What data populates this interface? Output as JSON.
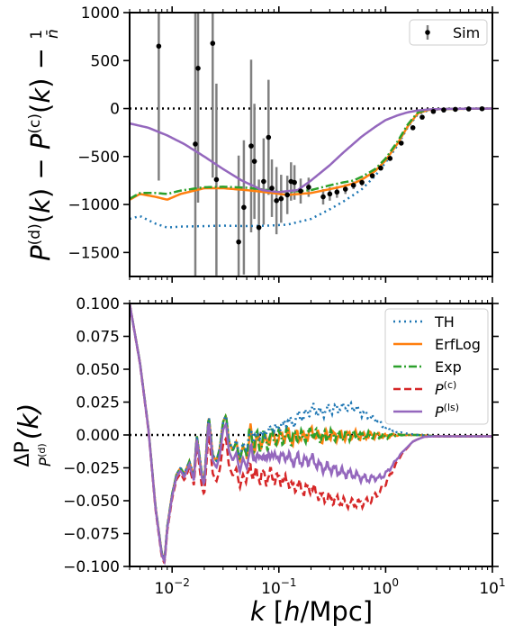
{
  "chart_data": [
    {
      "type": "line",
      "panel": "top",
      "ylabel": "P^(d)(k) − P^(c)(k) − 1/n̄",
      "ylim": [
        -1750,
        1000
      ],
      "xlim": [
        0.004,
        10
      ],
      "xscale": "log",
      "yticks": [
        1000,
        500,
        0,
        -500,
        -1000,
        -1500
      ],
      "ytick_labels": [
        "1000",
        "500",
        "0",
        "−500",
        "−1000",
        "−1500"
      ],
      "reference_line": {
        "y": 0,
        "style": "dotted",
        "color": "#000000"
      },
      "legend": {
        "position": "top-right",
        "entries": [
          "Sim"
        ]
      },
      "series": [
        {
          "name": "TH",
          "color": "#1f77b4",
          "style": "dotted",
          "x": [
            0.004,
            0.005,
            0.007,
            0.009,
            0.012,
            0.02,
            0.03,
            0.05,
            0.08,
            0.12,
            0.2,
            0.3,
            0.4,
            0.5,
            0.6,
            0.8,
            1.0,
            1.3,
            1.6,
            2.0,
            2.5,
            3.0,
            4,
            6,
            10
          ],
          "y": [
            -1150,
            -1120,
            -1200,
            -1240,
            -1230,
            -1225,
            -1220,
            -1225,
            -1220,
            -1210,
            -1150,
            -1050,
            -970,
            -900,
            -840,
            -700,
            -560,
            -380,
            -200,
            -60,
            -20,
            -10,
            -5,
            -2,
            0
          ]
        },
        {
          "name": "ErfLog",
          "color": "#ff7f0e",
          "style": "solid",
          "x": [
            0.004,
            0.005,
            0.007,
            0.009,
            0.012,
            0.02,
            0.03,
            0.05,
            0.08,
            0.12,
            0.2,
            0.3,
            0.4,
            0.5,
            0.6,
            0.8,
            1.0,
            1.3,
            1.6,
            2.0,
            2.5,
            3.0,
            4,
            6,
            10
          ],
          "y": [
            -950,
            -890,
            -920,
            -950,
            -890,
            -830,
            -830,
            -850,
            -875,
            -900,
            -880,
            -840,
            -810,
            -780,
            -740,
            -650,
            -540,
            -360,
            -190,
            -50,
            -15,
            -8,
            -4,
            -2,
            0
          ]
        },
        {
          "name": "Exp",
          "color": "#2ca02c",
          "style": "dashdot",
          "x": [
            0.004,
            0.005,
            0.007,
            0.009,
            0.012,
            0.02,
            0.03,
            0.05,
            0.08,
            0.12,
            0.2,
            0.3,
            0.4,
            0.5,
            0.6,
            0.8,
            1.0,
            1.3,
            1.6,
            2.0,
            2.5,
            3.0,
            4,
            6,
            10
          ],
          "y": [
            -940,
            -880,
            -880,
            -890,
            -855,
            -820,
            -815,
            -825,
            -850,
            -870,
            -850,
            -800,
            -770,
            -750,
            -710,
            -630,
            -520,
            -340,
            -170,
            -40,
            -12,
            -6,
            -3,
            -1,
            0
          ]
        },
        {
          "name": "P^(ls)",
          "color": "#9467bd",
          "style": "solid",
          "x": [
            0.004,
            0.006,
            0.009,
            0.013,
            0.02,
            0.03,
            0.045,
            0.07,
            0.1,
            0.15,
            0.2,
            0.3,
            0.4,
            0.6,
            0.8,
            1.0,
            1.3,
            1.6,
            2.0,
            2.5,
            3,
            4,
            6,
            10
          ],
          "y": [
            -155,
            -200,
            -280,
            -370,
            -500,
            -630,
            -750,
            -850,
            -870,
            -850,
            -750,
            -590,
            -460,
            -290,
            -190,
            -120,
            -70,
            -40,
            -20,
            -10,
            -6,
            -3,
            -1,
            0
          ]
        }
      ],
      "errorbar_series": {
        "name": "Sim",
        "color": "#000000",
        "errcolor": "#808080",
        "points": [
          {
            "x": 0.0075,
            "y": 650,
            "err": 1400
          },
          {
            "x": 0.0165,
            "y": -370,
            "err": 2000
          },
          {
            "x": 0.0175,
            "y": 420,
            "err": 1400
          },
          {
            "x": 0.024,
            "y": 680,
            "err": 1400
          },
          {
            "x": 0.026,
            "y": -740,
            "err": 1000
          },
          {
            "x": 0.042,
            "y": -1390,
            "err": 900
          },
          {
            "x": 0.047,
            "y": -1030,
            "err": 700
          },
          {
            "x": 0.055,
            "y": -390,
            "err": 900
          },
          {
            "x": 0.059,
            "y": -550,
            "err": 600
          },
          {
            "x": 0.065,
            "y": -1240,
            "err": 500
          },
          {
            "x": 0.072,
            "y": -760,
            "err": 450
          },
          {
            "x": 0.08,
            "y": -300,
            "err": 600
          },
          {
            "x": 0.086,
            "y": -830,
            "err": 300
          },
          {
            "x": 0.095,
            "y": -960,
            "err": 350
          },
          {
            "x": 0.105,
            "y": -940,
            "err": 250
          },
          {
            "x": 0.12,
            "y": -900,
            "err": 200
          },
          {
            "x": 0.13,
            "y": -760,
            "err": 200
          },
          {
            "x": 0.14,
            "y": -770,
            "err": 180
          },
          {
            "x": 0.16,
            "y": -860,
            "err": 130
          },
          {
            "x": 0.19,
            "y": -820,
            "err": 100
          },
          {
            "x": 0.26,
            "y": -920,
            "err": 80
          },
          {
            "x": 0.3,
            "y": -890,
            "err": 70
          },
          {
            "x": 0.35,
            "y": -870,
            "err": 60
          },
          {
            "x": 0.42,
            "y": -840,
            "err": 50
          },
          {
            "x": 0.5,
            "y": -800,
            "err": 40
          },
          {
            "x": 0.6,
            "y": -770,
            "err": 35
          },
          {
            "x": 0.75,
            "y": -700,
            "err": 30
          },
          {
            "x": 0.9,
            "y": -620,
            "err": 25
          },
          {
            "x": 1.1,
            "y": -520,
            "err": 20
          },
          {
            "x": 1.4,
            "y": -360,
            "err": 15
          },
          {
            "x": 1.8,
            "y": -200,
            "err": 10
          },
          {
            "x": 2.2,
            "y": -90,
            "err": 8
          },
          {
            "x": 2.8,
            "y": -30,
            "err": 5
          },
          {
            "x": 3.5,
            "y": -15,
            "err": 4
          },
          {
            "x": 4.5,
            "y": -8,
            "err": 3
          },
          {
            "x": 6,
            "y": -4,
            "err": 2
          },
          {
            "x": 8,
            "y": -2,
            "err": 2
          }
        ]
      }
    },
    {
      "type": "line",
      "panel": "bottom",
      "ylabel": "ΔP / P^(d)(k)",
      "xlabel": "k [h/Mpc]",
      "ylim": [
        -0.1,
        0.1
      ],
      "xlim": [
        0.004,
        10
      ],
      "xscale": "log",
      "yticks": [
        0.1,
        0.075,
        0.05,
        0.025,
        0.0,
        -0.025,
        -0.05,
        -0.075,
        -0.1
      ],
      "ytick_labels": [
        "0.100",
        "0.075",
        "0.050",
        "0.025",
        "0.000",
        "−0.025",
        "−0.050",
        "−0.075",
        "−0.100"
      ],
      "xticks": [
        0.01,
        0.1,
        1,
        10
      ],
      "xtick_base": "10",
      "xtick_exps": [
        "−2",
        "−1",
        "0",
        "1"
      ],
      "reference_line": {
        "y": 0,
        "style": "dotted",
        "color": "#000000"
      },
      "legend": {
        "position": "top-right",
        "entries": [
          "TH",
          "ErfLog",
          "Exp",
          "P^(c)",
          "P^(ls)"
        ]
      },
      "base_curve": {
        "x": [
          0.004,
          0.005,
          0.006,
          0.007,
          0.008,
          0.0085,
          0.009,
          0.01,
          0.011,
          0.012,
          0.013,
          0.0145,
          0.016,
          0.017,
          0.018,
          0.019,
          0.02,
          0.022,
          0.024,
          0.026,
          0.028,
          0.03,
          0.032,
          0.034,
          0.037,
          0.04,
          0.043,
          0.046,
          0.05,
          0.054,
          0.058,
          0.062,
          0.067,
          0.072,
          0.078,
          0.085,
          0.092,
          0.1,
          0.11,
          0.12,
          0.13,
          0.15,
          0.17,
          0.2,
          0.25,
          0.3,
          0.4,
          0.5,
          0.6,
          0.8,
          1.0,
          1.3,
          1.6,
          2.0,
          3.0,
          4.0,
          6.0,
          10
        ],
        "y": [
          0.1,
          0.055,
          0.005,
          -0.055,
          -0.09,
          -0.095,
          -0.07,
          -0.045,
          -0.03,
          -0.025,
          -0.03,
          -0.02,
          -0.032,
          0.0,
          -0.015,
          -0.03,
          -0.035,
          0.015,
          -0.015,
          -0.02,
          -0.01,
          0.01,
          0.015,
          -0.005,
          -0.012,
          -0.005,
          -0.02,
          -0.008,
          -0.015,
          0.005,
          -0.012,
          0.0,
          -0.01,
          0.0,
          -0.008,
          0.002,
          -0.005,
          0.0,
          -0.003,
          0.002,
          -0.004,
          0.0,
          -0.002,
          0.002,
          -0.002,
          0.0,
          -0.001,
          0.0,
          -0.001,
          0.0,
          -0.001,
          0.0,
          0.0,
          0.0,
          -0.001,
          -0.001,
          -0.001,
          -0.001
        ]
      },
      "series": [
        {
          "name": "TH",
          "color": "#1f77b4",
          "style": "dotted",
          "offset_x": [
            0.004,
            0.03,
            0.06,
            0.1,
            0.15,
            0.2,
            0.3,
            0.45,
            0.6,
            0.8,
            1.0,
            1.3,
            1.6,
            2.0,
            3.0,
            10
          ],
          "offset_y": [
            0,
            0,
            0.004,
            0.008,
            0.014,
            0.018,
            0.02,
            0.022,
            0.018,
            0.012,
            0.006,
            0.002,
            0.001,
            0,
            0,
            0
          ]
        },
        {
          "name": "ErfLog",
          "color": "#ff7f0e",
          "style": "solid",
          "offset_x": [
            0.004,
            10
          ],
          "offset_y": [
            0,
            0
          ]
        },
        {
          "name": "Exp",
          "color": "#2ca02c",
          "style": "dashdot",
          "offset_x": [
            0.004,
            10
          ],
          "offset_y": [
            0,
            0
          ]
        },
        {
          "name": "P^(c)",
          "color": "#d62728",
          "style": "dashed",
          "offset_x": [
            0.004,
            0.015,
            0.025,
            0.04,
            0.06,
            0.09,
            0.13,
            0.2,
            0.3,
            0.5,
            0.7,
            0.9,
            1.1,
            1.4,
            1.8,
            2.3,
            3.0,
            10
          ],
          "offset_y": [
            0,
            -0.005,
            -0.015,
            -0.02,
            -0.025,
            -0.03,
            -0.036,
            -0.042,
            -0.048,
            -0.052,
            -0.05,
            -0.042,
            -0.03,
            -0.015,
            -0.005,
            -0.001,
            0,
            0
          ]
        },
        {
          "name": "P^(ls)",
          "color": "#9467bd",
          "style": "solid",
          "offset_x": [
            0.004,
            0.02,
            0.03,
            0.05,
            0.08,
            0.12,
            0.2,
            0.3,
            0.5,
            0.7,
            0.9,
            1.1,
            1.4,
            1.8,
            2.3,
            3.0,
            10
          ],
          "offset_y": [
            0,
            -0.003,
            -0.006,
            -0.01,
            -0.013,
            -0.016,
            -0.02,
            -0.025,
            -0.03,
            -0.033,
            -0.032,
            -0.025,
            -0.014,
            -0.005,
            -0.001,
            0,
            0
          ]
        }
      ]
    }
  ]
}
